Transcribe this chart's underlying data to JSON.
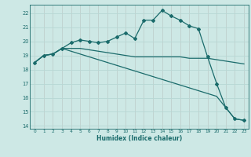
{
  "xlabel": "Humidex (Indice chaleur)",
  "ylabel": "",
  "background_color": "#cde8e5",
  "grid_color": "#b8d8d5",
  "line_color": "#1a6b6b",
  "xlim": [
    -0.5,
    23.5
  ],
  "ylim": [
    13.8,
    22.6
  ],
  "xticks": [
    0,
    1,
    2,
    3,
    4,
    5,
    6,
    7,
    8,
    9,
    10,
    11,
    12,
    13,
    14,
    15,
    16,
    17,
    18,
    19,
    20,
    21,
    22,
    23
  ],
  "yticks": [
    14,
    15,
    16,
    17,
    18,
    19,
    20,
    21,
    22
  ],
  "line1_x": [
    0,
    1,
    2,
    3,
    4,
    5,
    6,
    7,
    8,
    9,
    10,
    11,
    12,
    13,
    14,
    15,
    16,
    17,
    18,
    19,
    20,
    21,
    22,
    23
  ],
  "line1_y": [
    18.5,
    19.0,
    19.1,
    19.5,
    19.9,
    20.1,
    20.0,
    19.9,
    20.0,
    20.3,
    20.6,
    20.2,
    21.5,
    21.5,
    22.2,
    21.8,
    21.5,
    21.1,
    20.9,
    18.9,
    17.0,
    15.3,
    14.5,
    14.4
  ],
  "line2_x": [
    0,
    1,
    2,
    3,
    4,
    5,
    6,
    7,
    8,
    9,
    10,
    11,
    12,
    13,
    14,
    15,
    16,
    17,
    18,
    19,
    20,
    21,
    22,
    23
  ],
  "line2_y": [
    18.5,
    19.0,
    19.1,
    19.5,
    19.5,
    19.5,
    19.4,
    19.3,
    19.2,
    19.1,
    19.0,
    18.9,
    18.9,
    18.9,
    18.9,
    18.9,
    18.9,
    18.8,
    18.8,
    18.8,
    18.7,
    18.6,
    18.5,
    18.4
  ],
  "line3_x": [
    0,
    1,
    2,
    3,
    4,
    5,
    6,
    7,
    8,
    9,
    10,
    11,
    12,
    13,
    14,
    15,
    16,
    17,
    18,
    19,
    20,
    21,
    22,
    23
  ],
  "line3_y": [
    18.5,
    19.0,
    19.1,
    19.5,
    19.3,
    19.1,
    18.9,
    18.7,
    18.5,
    18.3,
    18.1,
    17.9,
    17.7,
    17.5,
    17.3,
    17.1,
    16.9,
    16.7,
    16.5,
    16.3,
    16.1,
    15.3,
    14.5,
    14.4
  ]
}
